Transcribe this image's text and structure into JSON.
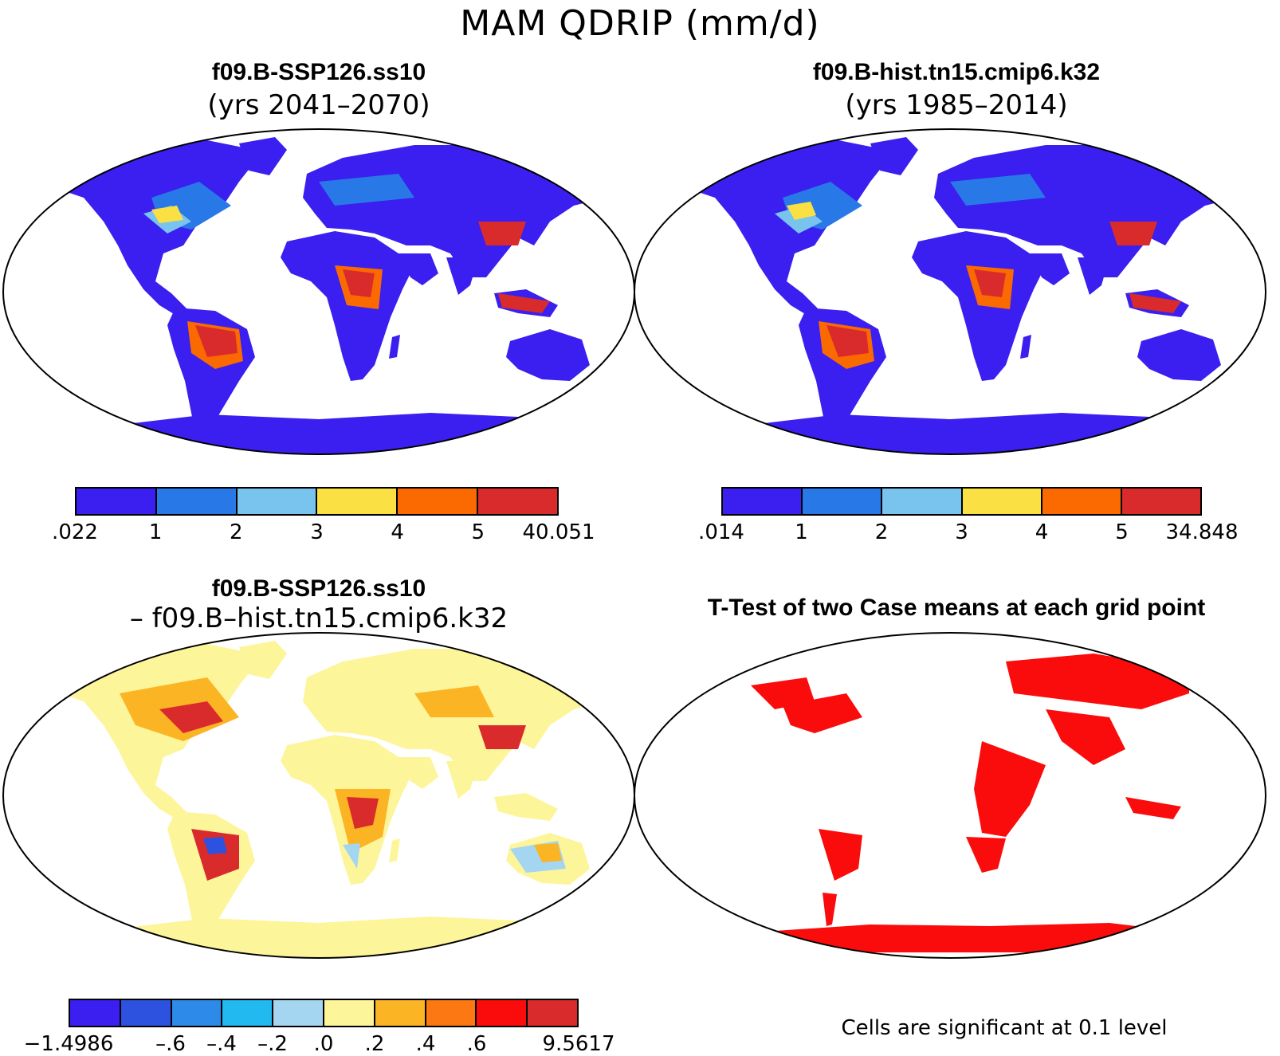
{
  "title": "MAM QDRIP (mm/d)",
  "panels": [
    {
      "title": "f09.B-SSP126.ss10",
      "subtitle": "(yrs 2041–2070)"
    },
    {
      "title": "f09.B-hist.tn15.cmip6.k32",
      "subtitle": "(yrs 1985–2014)"
    },
    {
      "title": "f09.B-SSP126.ss10",
      "subtitle": "– f09.B–hist.tn15.cmip6.k32"
    },
    {
      "title": "T-Test of two Case means at each grid point",
      "subtitle": ""
    }
  ],
  "colorbars": [
    {
      "colors": [
        "#3a1ff0",
        "#2878e8",
        "#78c4ee",
        "#fbe043",
        "#fb6a00",
        "#d92b2b"
      ],
      "labels": [
        ".022",
        "1",
        "2",
        "3",
        "4",
        "5",
        "40.051"
      ]
    },
    {
      "colors": [
        "#3a1ff0",
        "#2878e8",
        "#78c4ee",
        "#fbe043",
        "#fb6a00",
        "#d92b2b"
      ],
      "labels": [
        ".014",
        "1",
        "2",
        "3",
        "4",
        "5",
        "34.848"
      ]
    },
    {
      "colors": [
        "#3a1ff0",
        "#2e52e0",
        "#2d8ae8",
        "#22b8f0",
        "#a4d6f2",
        "#fdf59a",
        "#fbb424",
        "#fb7812",
        "#fa0c0c",
        "#d92b2b"
      ],
      "labels": [
        "−1.4986",
        "–.6",
        "–.4",
        "–.2",
        ".0",
        ".2",
        ".4",
        ".6",
        "9.5617"
      ]
    }
  ],
  "note": "Cells are significant at 0.1 level",
  "map_fills": {
    "p1": {
      "ocean": "#ffffff",
      "land": "#3a1ff0",
      "mid": "#2878e8",
      "light": "#78c4ee",
      "yellow": "#fbe043",
      "orange": "#fb6a00",
      "red": "#d92b2b"
    },
    "p3": {
      "land": "#fdf59a",
      "orange": "#fbb424",
      "red": "#d92b2b",
      "blue": "#a4d6f2",
      "dblue": "#2e52e0"
    },
    "p4": {
      "sig": "#fa0c0c"
    }
  }
}
